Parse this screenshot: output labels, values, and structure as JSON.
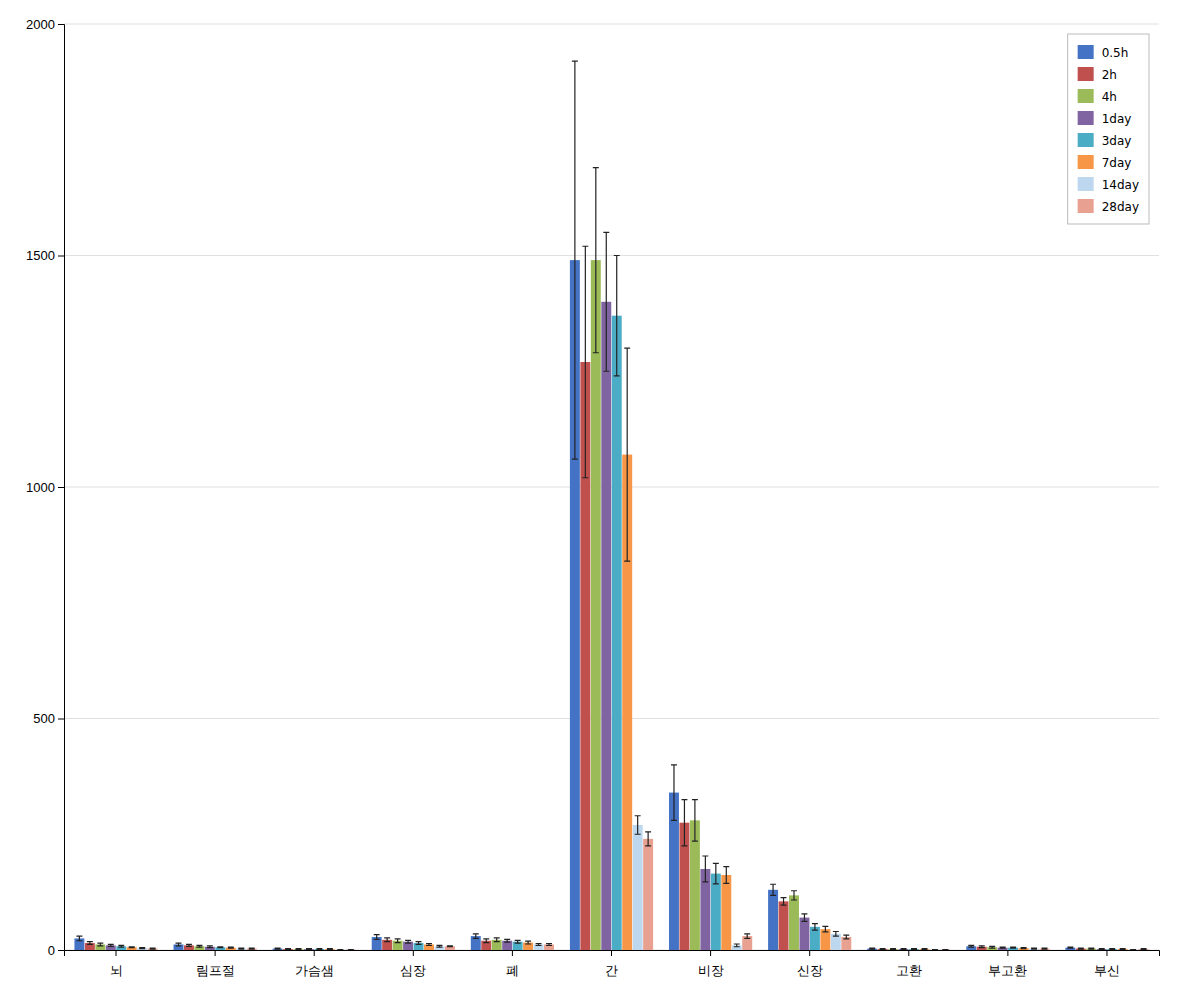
{
  "chart_data": {
    "type": "bar",
    "categories": [
      "뇌",
      "림프절",
      "가슴샘",
      "심장",
      "폐",
      "간",
      "비장",
      "신장",
      "고환",
      "부고환",
      "부신"
    ],
    "series": [
      {
        "name": "0.5h",
        "color": "#4472C4",
        "values": [
          25,
          12,
          3,
          28,
          30,
          1490,
          340,
          130,
          3,
          8,
          5
        ],
        "errors": [
          5,
          3,
          1,
          5,
          5,
          430,
          60,
          12,
          1,
          2,
          1
        ]
      },
      {
        "name": "2h",
        "color": "#C0504D",
        "values": [
          15,
          10,
          2,
          22,
          20,
          1270,
          275,
          105,
          2,
          7,
          3
        ],
        "errors": [
          3,
          2,
          1,
          4,
          4,
          250,
          50,
          8,
          1,
          2,
          1
        ]
      },
      {
        "name": "4h",
        "color": "#9BBB59",
        "values": [
          12,
          8,
          2,
          20,
          22,
          1490,
          280,
          118,
          2,
          6,
          3
        ],
        "errors": [
          3,
          2,
          1,
          4,
          4,
          200,
          45,
          10,
          1,
          2,
          1
        ]
      },
      {
        "name": "1day",
        "color": "#8064A2",
        "values": [
          10,
          7,
          2,
          18,
          20,
          1400,
          175,
          70,
          2,
          5,
          2
        ],
        "errors": [
          2,
          2,
          1,
          3,
          3,
          150,
          28,
          8,
          1,
          1,
          1
        ]
      },
      {
        "name": "3day",
        "color": "#4BACC6",
        "values": [
          8,
          6,
          2,
          15,
          18,
          1370,
          165,
          50,
          2,
          5,
          2
        ],
        "errors": [
          2,
          1,
          1,
          3,
          3,
          130,
          22,
          7,
          1,
          1,
          1
        ]
      },
      {
        "name": "7day",
        "color": "#F79646",
        "values": [
          6,
          5,
          2,
          12,
          16,
          1070,
          162,
          45,
          2,
          4,
          2
        ],
        "errors": [
          1,
          1,
          1,
          2,
          3,
          230,
          18,
          6,
          1,
          1,
          1
        ]
      },
      {
        "name": "14day",
        "color": "#BDD7EE",
        "values": [
          4,
          3,
          1,
          8,
          12,
          270,
          10,
          35,
          1,
          3,
          1
        ],
        "errors": [
          1,
          1,
          0,
          2,
          2,
          20,
          3,
          5,
          0,
          1,
          0
        ]
      },
      {
        "name": "28day",
        "color": "#E8A090",
        "values": [
          3,
          3,
          1,
          8,
          12,
          240,
          30,
          28,
          1,
          3,
          2
        ],
        "errors": [
          1,
          1,
          0,
          1,
          2,
          15,
          5,
          4,
          0,
          1,
          1
        ]
      }
    ],
    "ylim": [
      0,
      2000
    ],
    "yticks": [
      0,
      500,
      1000,
      1500,
      2000
    ],
    "grid": true,
    "legend": "upper right"
  }
}
